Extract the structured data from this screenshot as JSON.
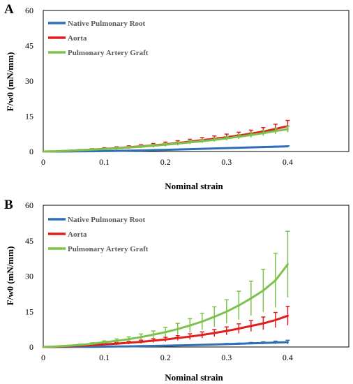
{
  "chart_data": [
    {
      "panel": "A",
      "type": "line",
      "xlabel": "Nominal strain",
      "ylabel": "F/w0 (mN/mm)",
      "xlim": [
        0,
        0.5
      ],
      "ylim": [
        0,
        60
      ],
      "xticks": [
        "0",
        "0.1",
        "0.2",
        "0.3",
        "0.4"
      ],
      "yticks": [
        "0",
        "15",
        "30",
        "45",
        "60"
      ],
      "legend": "top-left",
      "grid": false,
      "x": [
        0,
        0.02,
        0.04,
        0.06,
        0.08,
        0.1,
        0.12,
        0.14,
        0.16,
        0.18,
        0.2,
        0.22,
        0.24,
        0.26,
        0.28,
        0.3,
        0.32,
        0.34,
        0.36,
        0.38,
        0.4
      ],
      "series": [
        {
          "name": "Native Pulmonary Root",
          "color": "#2f6fb5",
          "values": [
            0,
            0.01,
            0.03,
            0.07,
            0.12,
            0.18,
            0.26,
            0.36,
            0.46,
            0.58,
            0.72,
            0.86,
            1.0,
            1.15,
            1.3,
            1.45,
            1.6,
            1.75,
            1.9,
            2.05,
            2.2
          ],
          "errors": [
            0,
            0,
            0,
            0,
            0,
            0,
            0,
            0,
            0,
            0,
            0.1,
            0.1,
            0.1,
            0.1,
            0.1,
            0.1,
            0.1,
            0.1,
            0.2,
            0.2,
            0.2
          ]
        },
        {
          "name": "Aorta",
          "color": "#e01e1e",
          "values": [
            0,
            0.1,
            0.3,
            0.55,
            0.8,
            1.1,
            1.4,
            1.8,
            2.2,
            2.6,
            3.1,
            3.6,
            4.2,
            4.8,
            5.4,
            6.1,
            6.8,
            7.6,
            8.5,
            9.6,
            10.8
          ],
          "errors": [
            0,
            0.1,
            0.2,
            0.3,
            0.4,
            0.5,
            0.6,
            0.6,
            0.7,
            0.8,
            0.9,
            1.0,
            1.0,
            1.1,
            1.2,
            1.3,
            1.4,
            1.5,
            1.7,
            2.0,
            2.4
          ]
        },
        {
          "name": "Pulmonary Artery Graft",
          "color": "#7cc24b",
          "values": [
            0,
            0.1,
            0.3,
            0.55,
            0.8,
            1.05,
            1.35,
            1.7,
            2.05,
            2.45,
            2.9,
            3.4,
            3.9,
            4.4,
            5.0,
            5.6,
            6.3,
            7.0,
            7.8,
            8.7,
            9.5
          ],
          "errors": [
            0,
            0.1,
            0.1,
            0.2,
            0.3,
            0.3,
            0.4,
            0.4,
            0.5,
            0.5,
            0.6,
            0.6,
            0.7,
            0.7,
            0.8,
            0.8,
            0.9,
            1.0,
            1.1,
            1.2,
            1.3
          ]
        }
      ]
    },
    {
      "panel": "B",
      "type": "line",
      "xlabel": "Nominal strain",
      "ylabel": "F/w0 (mN/mm)",
      "xlim": [
        0,
        0.5
      ],
      "ylim": [
        0,
        60
      ],
      "xticks": [
        "0",
        "0.1",
        "0.2",
        "0.3",
        "0.4"
      ],
      "yticks": [
        "0",
        "15",
        "30",
        "45",
        "60"
      ],
      "legend": "top-left",
      "grid": false,
      "x": [
        0,
        0.02,
        0.04,
        0.06,
        0.08,
        0.1,
        0.12,
        0.14,
        0.16,
        0.18,
        0.2,
        0.22,
        0.24,
        0.26,
        0.28,
        0.3,
        0.32,
        0.34,
        0.36,
        0.38,
        0.4
      ],
      "series": [
        {
          "name": "Native Pulmonary Root",
          "color": "#2f6fb5",
          "values": [
            0,
            0.01,
            0.03,
            0.06,
            0.1,
            0.15,
            0.21,
            0.28,
            0.36,
            0.45,
            0.55,
            0.66,
            0.78,
            0.91,
            1.05,
            1.2,
            1.36,
            1.53,
            1.7,
            1.88,
            2.05
          ],
          "errors": [
            0,
            0,
            0,
            0,
            0,
            0,
            0,
            0,
            0,
            0.1,
            0.1,
            0.1,
            0.1,
            0.2,
            0.2,
            0.3,
            0.3,
            0.4,
            0.5,
            0.6,
            0.8
          ]
        },
        {
          "name": "Aorta",
          "color": "#e01e1e",
          "values": [
            0,
            0.1,
            0.3,
            0.5,
            0.8,
            1.1,
            1.4,
            1.8,
            2.2,
            2.7,
            3.2,
            3.8,
            4.4,
            5.1,
            5.9,
            6.8,
            7.8,
            8.9,
            10.0,
            11.4,
            13.2
          ],
          "errors": [
            0,
            0.1,
            0.1,
            0.2,
            0.3,
            0.4,
            0.5,
            0.6,
            0.7,
            0.8,
            0.9,
            1.0,
            1.2,
            1.3,
            1.5,
            1.7,
            2.0,
            2.3,
            2.7,
            3.2,
            4.0
          ]
        },
        {
          "name": "Pulmonary Artery Graft",
          "color": "#7cc24b",
          "values": [
            0,
            0.2,
            0.5,
            0.9,
            1.4,
            2.0,
            2.6,
            3.3,
            4.2,
            5.2,
            6.3,
            7.6,
            9.1,
            10.8,
            12.8,
            15.0,
            17.6,
            20.6,
            23.9,
            28.2,
            35.0
          ],
          "errors": [
            0,
            0.1,
            0.2,
            0.3,
            0.4,
            0.6,
            0.8,
            1.0,
            1.3,
            1.6,
            2.0,
            2.4,
            2.9,
            3.5,
            4.2,
            5.0,
            6.0,
            7.3,
            9.0,
            11.5,
            14.0
          ]
        }
      ]
    }
  ]
}
